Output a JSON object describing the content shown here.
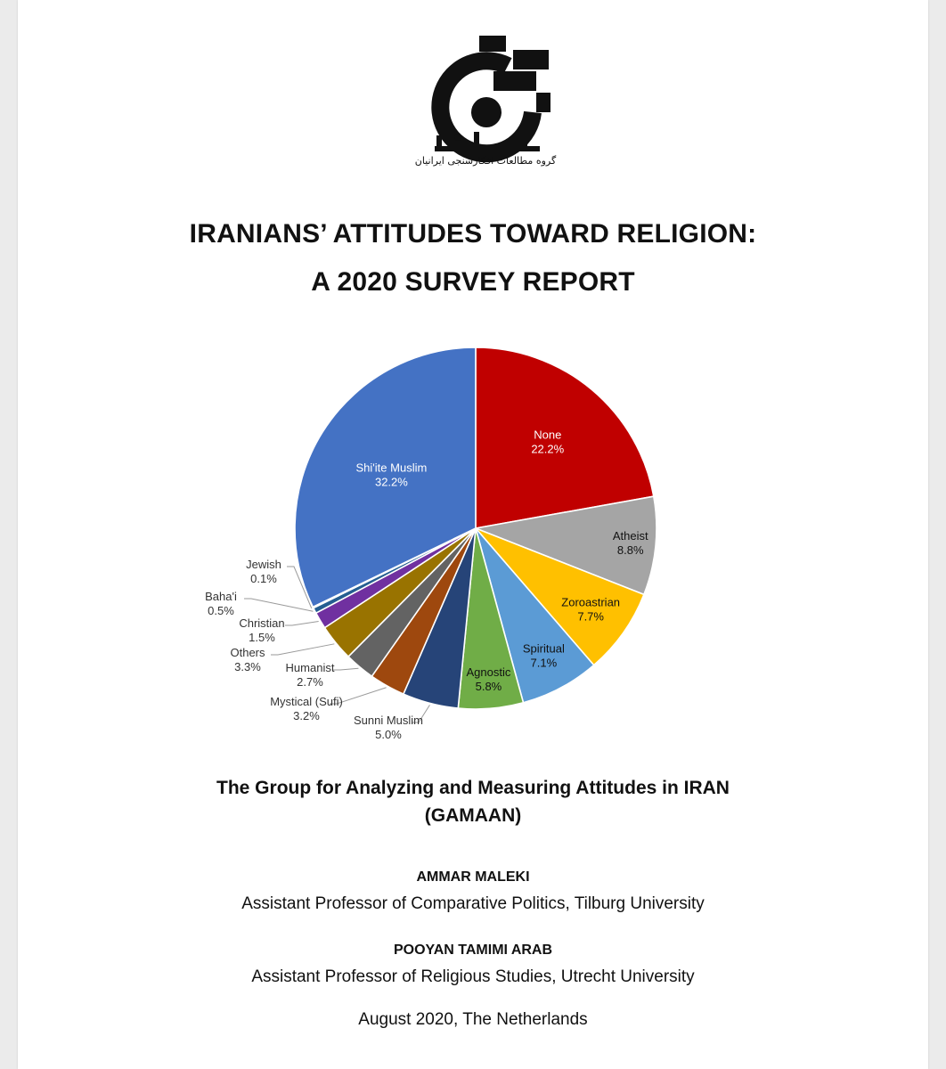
{
  "logo": {
    "icon": "gamaan-logo-icon",
    "wordmark": "گمان",
    "caption": "گروه مطالعات افکارسنجی ایرانیان"
  },
  "title": {
    "line1": "IRANIANS’ ATTITUDES TOWARD RELIGION:",
    "line2": "A 2020 SURVEY REPORT"
  },
  "chart_data": {
    "type": "pie",
    "start_angle_deg": 0,
    "direction": "clockwise",
    "slices": [
      {
        "label": "None",
        "value": 22.2,
        "value_label": "22.2%",
        "color": "#c00000"
      },
      {
        "label": "Atheist",
        "value": 8.8,
        "value_label": "8.8%",
        "color": "#a5a5a5"
      },
      {
        "label": "Zoroastrian",
        "value": 7.7,
        "value_label": "7.7%",
        "color": "#ffc000"
      },
      {
        "label": "Spiritual",
        "value": 7.1,
        "value_label": "7.1%",
        "color": "#5b9bd5"
      },
      {
        "label": "Agnostic",
        "value": 5.8,
        "value_label": "5.8%",
        "color": "#70ad47"
      },
      {
        "label": "Sunni Muslim",
        "value": 5.0,
        "value_label": "5.0%",
        "color": "#264478"
      },
      {
        "label": "Mystical (Sufi)",
        "value": 3.2,
        "value_label": "3.2%",
        "color": "#9e480e"
      },
      {
        "label": "Humanist",
        "value": 2.7,
        "value_label": "2.7%",
        "color": "#636363"
      },
      {
        "label": "Others",
        "value": 3.3,
        "value_label": "3.3%",
        "color": "#997300"
      },
      {
        "label": "Christian",
        "value": 1.5,
        "value_label": "1.5%",
        "color": "#7030a0"
      },
      {
        "label": "Baha'i",
        "value": 0.5,
        "value_label": "0.5%",
        "color": "#255e91"
      },
      {
        "label": "Jewish",
        "value": 0.1,
        "value_label": "0.1%",
        "color": "#43682b"
      },
      {
        "label": "Shi'ite Muslim",
        "value": 32.2,
        "value_label": "32.2%",
        "color": "#4472c4"
      }
    ]
  },
  "organization": {
    "line1": "The Group for Analyzing and Measuring Attitudes in IRAN",
    "line2": "(GAMAAN)"
  },
  "authors": [
    {
      "name": "AMMAR MALEKI",
      "affiliation": "Assistant Professor of Comparative Politics, Tilburg University"
    },
    {
      "name": "POOYAN TAMIMI ARAB",
      "affiliation": "Assistant Professor of Religious Studies, Utrecht University"
    }
  ],
  "date_place": "August 2020, The Netherlands"
}
